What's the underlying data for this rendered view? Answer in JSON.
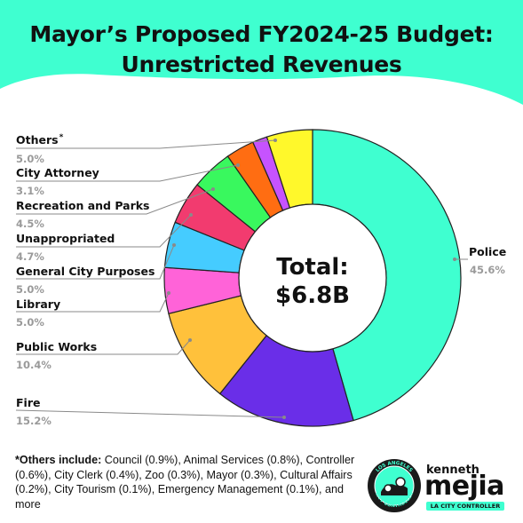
{
  "title": {
    "line1": "Mayor’s Proposed FY2024-25 Budget:",
    "line2": "Unrestricted Revenues"
  },
  "center": {
    "line1": "Total:",
    "line2": "$6.8B"
  },
  "chart_data": {
    "type": "pie",
    "subtype": "donut",
    "title": "Mayor’s Proposed FY2024-25 Budget: Unrestricted Revenues",
    "total_label": "Total: $6.8B",
    "slices": [
      {
        "label": "Police",
        "value": 45.6,
        "value_label": "45.6%",
        "color": "#3fffd0"
      },
      {
        "label": "Fire",
        "value": 15.2,
        "value_label": "15.2%",
        "color": "#6a2ee8"
      },
      {
        "label": "Public Works",
        "value": 10.4,
        "value_label": "10.4%",
        "color": "#ffc13b"
      },
      {
        "label": "Library",
        "value": 5.0,
        "value_label": "5.0%",
        "color": "#ff63d8"
      },
      {
        "label": "General City Purposes",
        "value": 5.0,
        "value_label": "5.0%",
        "color": "#45ccff"
      },
      {
        "label": "Unappropriated",
        "value": 4.7,
        "value_label": "4.7%",
        "color": "#f23b6f"
      },
      {
        "label": "Recreation and Parks",
        "value": 4.5,
        "value_label": "4.5%",
        "color": "#39f85e"
      },
      {
        "label": "City Attorney",
        "value": 3.1,
        "value_label": "3.1%",
        "color": "#ff6d12"
      },
      {
        "label": "Others",
        "value": 1.6,
        "value_label": "",
        "color": "#c653ff"
      },
      {
        "label": "Others",
        "value": 5.0,
        "value_label": "5.0%",
        "color": "#fff82b"
      }
    ],
    "legend_placement": "left and right labels with leader lines"
  },
  "labels": {
    "others": {
      "name": "Others",
      "star": "*",
      "pct": "5.0%"
    },
    "city_attorney": {
      "name": "City Attorney",
      "pct": "3.1%"
    },
    "rec_parks": {
      "name": "Recreation and Parks",
      "pct": "4.5%"
    },
    "unappropriated": {
      "name": "Unappropriated",
      "pct": "4.7%"
    },
    "gcp": {
      "name": "General City Purposes",
      "pct": "5.0%"
    },
    "library": {
      "name": "Library",
      "pct": "5.0%"
    },
    "public_works": {
      "name": "Public Works",
      "pct": "10.4%"
    },
    "fire": {
      "name": "Fire",
      "pct": "15.2%"
    },
    "police": {
      "name": "Police",
      "pct": "45.6%"
    }
  },
  "footnote": {
    "lead": "*Others include:",
    "text": " Council (0.9%), Animal Services (0.8%), Controller (0.6%), City Clerk (0.4%), Zoo (0.3%), Mayor (0.3%), Cultural Affairs (0.2%), City Tourism (0.1%), Emergency Management (0.1%), and more"
  },
  "logo": {
    "first": "kenneth",
    "last": "mejia",
    "tag": "LA CITY CONTROLLER",
    "seal_top": "LOS ANGELES",
    "seal_bottom": "CITY CONTROLLER"
  },
  "colors": {
    "header_bg": "#3fffd0",
    "leader": "#888888"
  }
}
